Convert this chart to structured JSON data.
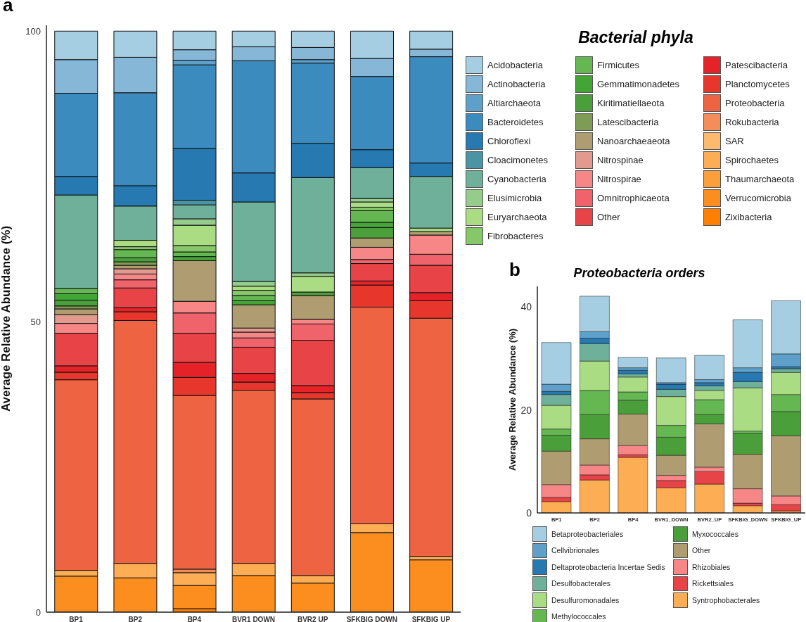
{
  "chart_data": [
    {
      "type": "bar",
      "stacked": true,
      "annotations": [
        "a"
      ],
      "ylabel": "Average Relative Abundance (%)",
      "legend_title": "Bacterial phyla",
      "legend": "right",
      "ylim": [
        0,
        101
      ],
      "yticks": [
        0,
        50,
        100
      ],
      "categories": [
        "BP1",
        "BP2",
        "BP4",
        "BVR1 DOWN",
        "BVR2 UP",
        "SFKBIG DOWN",
        "SFKBIG UP"
      ],
      "series": [
        {
          "name": "Zixibacteria",
          "color": "#ff7f00",
          "values": [
            null,
            null,
            0.6,
            null,
            null,
            null,
            null
          ]
        },
        {
          "name": "Verrucomicrobia",
          "color": "#fc8e1f",
          "values": [
            6.2,
            5.9,
            4.0,
            6.3,
            5.0,
            13.7,
            9.0
          ]
        },
        {
          "name": "Thaumarchaeota",
          "color": "#fc9e3a",
          "values": [
            null,
            null,
            null,
            null,
            null,
            null,
            null
          ]
        },
        {
          "name": "Spirochaetes",
          "color": "#fdae54",
          "values": [
            1.0,
            2.5,
            2.2,
            2.1,
            1.3,
            1.5,
            0.6
          ]
        },
        {
          "name": "SAR",
          "color": "#fdb96c",
          "values": [
            null,
            null,
            null,
            null,
            null,
            null,
            null
          ]
        },
        {
          "name": "Rokubacteria",
          "color": "#f58d5b",
          "values": [
            null,
            null,
            0.6,
            null,
            null,
            null,
            null
          ]
        },
        {
          "name": "Proteobacteria",
          "color": "#ee6442",
          "values": [
            32.8,
            41.8,
            29.9,
            29.8,
            30.4,
            37.3,
            41.0
          ]
        },
        {
          "name": "Planctomycetes",
          "color": "#e7372c",
          "values": [
            1.3,
            1.5,
            3.1,
            1.4,
            1.1,
            3.8,
            3.0
          ]
        },
        {
          "name": "Patescibacteria",
          "color": "#e42227",
          "values": [
            1.1,
            0.7,
            2.6,
            1.5,
            1.2,
            0.7,
            1.4
          ]
        },
        {
          "name": "Other",
          "color": "#e84347",
          "values": [
            5.6,
            3.4,
            5.0,
            4.5,
            7.8,
            3.0,
            4.7
          ]
        },
        {
          "name": "Omnitrophicaeota",
          "color": "#f0636a",
          "values": [
            null,
            1.4,
            3.5,
            1.6,
            2.8,
            0.7,
            1.9
          ]
        },
        {
          "name": "Nitrospirae",
          "color": "#f78686",
          "values": [
            1.7,
            1.0,
            2.0,
            1.0,
            0.8,
            2.1,
            3.3
          ]
        },
        {
          "name": "Nitrospinae",
          "color": "#e39a8e",
          "values": [
            1.5,
            0.9,
            null,
            0.7,
            null,
            null,
            null
          ]
        },
        {
          "name": "Nanoarchaeaeota",
          "color": "#b09c71",
          "values": [
            1.0,
            0.6,
            7.0,
            4.0,
            4.1,
            1.6,
            0.6
          ]
        },
        {
          "name": "Latescibacteria",
          "color": "#7f9c55",
          "values": [
            0.5,
            0.6,
            null,
            null,
            null,
            null,
            null
          ]
        },
        {
          "name": "Kiritimatiellaeota",
          "color": "#4b9f3a",
          "values": [
            1.0,
            0.7,
            null,
            null,
            0.6,
            1.8,
            null
          ]
        },
        {
          "name": "Gemmatimonadetes",
          "color": "#43a536",
          "values": [
            1.1,
            null,
            0.7,
            0.7,
            null,
            0.9,
            null
          ]
        },
        {
          "name": "Firmicutes",
          "color": "#65b752",
          "values": [
            0.9,
            1.4,
            0.8,
            0.9,
            null,
            2.0,
            null
          ]
        },
        {
          "name": "Fibrobacteres",
          "color": "#86c76a",
          "values": [
            null,
            0.5,
            1.1,
            0.9,
            null,
            0.6,
            null
          ]
        },
        {
          "name": "Euryarchaeota",
          "color": "#aadc84",
          "values": [
            null,
            1.1,
            3.5,
            0.7,
            2.7,
            0.9,
            0.6
          ]
        },
        {
          "name": "Elusimicrobia",
          "color": "#95cb8b",
          "values": [
            null,
            null,
            1.1,
            0.8,
            0.6,
            0.6,
            null
          ]
        },
        {
          "name": "Cyanobacteria",
          "color": "#6fb09b",
          "values": [
            16.1,
            5.9,
            2.4,
            13.7,
            16.4,
            5.3,
            8.9
          ]
        },
        {
          "name": "Cloacimonetes",
          "color": "#4b94a4",
          "values": [
            null,
            null,
            0.8,
            null,
            null,
            null,
            null
          ]
        },
        {
          "name": "Chloroflexi",
          "color": "#2679b1",
          "values": [
            3.2,
            3.5,
            8.9,
            5.0,
            5.9,
            3.1,
            2.3
          ]
        },
        {
          "name": "Bacteroidetes",
          "color": "#3c8bbf",
          "values": [
            14.3,
            16.0,
            14.4,
            19.3,
            13.8,
            12.6,
            18.3
          ]
        },
        {
          "name": "Altiarchaeota",
          "color": "#5fa0ca",
          "values": [
            null,
            null,
            0.8,
            null,
            0.6,
            null,
            null
          ]
        },
        {
          "name": "Actinobacteria",
          "color": "#86b7d7",
          "values": [
            5.8,
            6.1,
            1.8,
            2.4,
            2.1,
            3.1,
            1.3
          ]
        },
        {
          "name": "Acidobacteria",
          "color": "#a6cee3",
          "values": [
            4.9,
            4.5,
            3.2,
            2.7,
            2.8,
            4.7,
            3.1
          ]
        }
      ]
    },
    {
      "type": "bar",
      "stacked": true,
      "annotations": [
        "b"
      ],
      "title": "Proteobacteria orders",
      "ylabel": "Average Relative Abundance (%)",
      "legend": "bottom",
      "ylim": [
        0,
        44
      ],
      "yticks": [
        0,
        20,
        40
      ],
      "categories": [
        "BP1",
        "BP2",
        "BP4",
        "BVR1_DOWN",
        "BVR2_UP",
        "SFKBIG_DOWN",
        "SFKBIG_UP"
      ],
      "series": [
        {
          "name": "Syntrophobacterales",
          "color": "#fdae54",
          "values": [
            2.2,
            6.4,
            10.8,
            4.9,
            5.6,
            1.4,
            0.4
          ]
        },
        {
          "name": "Rickettsiales",
          "color": "#e84347",
          "values": [
            0.8,
            1.0,
            0.5,
            1.4,
            2.4,
            0.5,
            1.2
          ]
        },
        {
          "name": "Rhizobiales",
          "color": "#f78686",
          "values": [
            2.5,
            1.9,
            1.8,
            1.0,
            0.9,
            2.8,
            1.7
          ]
        },
        {
          "name": "Other",
          "color": "#b09c71",
          "values": [
            6.5,
            5.1,
            6.1,
            3.9,
            8.4,
            6.7,
            11.7
          ]
        },
        {
          "name": "Myxococcales",
          "color": "#4b9f3a",
          "values": [
            3.1,
            4.7,
            2.7,
            3.5,
            1.8,
            4.0,
            4.7
          ]
        },
        {
          "name": "Methylococcales",
          "color": "#65b752",
          "values": [
            1.2,
            4.7,
            1.6,
            2.3,
            2.9,
            0.5,
            3.3
          ]
        },
        {
          "name": "Desulfuromonadales",
          "color": "#aadc84",
          "values": [
            4.6,
            5.7,
            2.9,
            5.6,
            1.8,
            8.4,
            4.3
          ]
        },
        {
          "name": "Desulfobacterales",
          "color": "#6fb09b",
          "values": [
            2.1,
            3.4,
            0.6,
            1.4,
            0.9,
            1.2,
            0.7
          ]
        },
        {
          "name": "Deltaproteobacteria Incertae Sedis",
          "color": "#2679b1",
          "values": [
            0.6,
            1.0,
            0.7,
            1.0,
            0.6,
            1.8,
            0.4
          ]
        },
        {
          "name": "Cellvibrionales",
          "color": "#5fa0ca",
          "values": [
            1.4,
            1.3,
            0.5,
            0.3,
            0.6,
            0.9,
            2.5
          ]
        },
        {
          "name": "Betaproteobacteriales",
          "color": "#a6cee3",
          "values": [
            8.1,
            6.9,
            2.0,
            4.8,
            4.7,
            9.3,
            10.3
          ]
        }
      ]
    }
  ]
}
